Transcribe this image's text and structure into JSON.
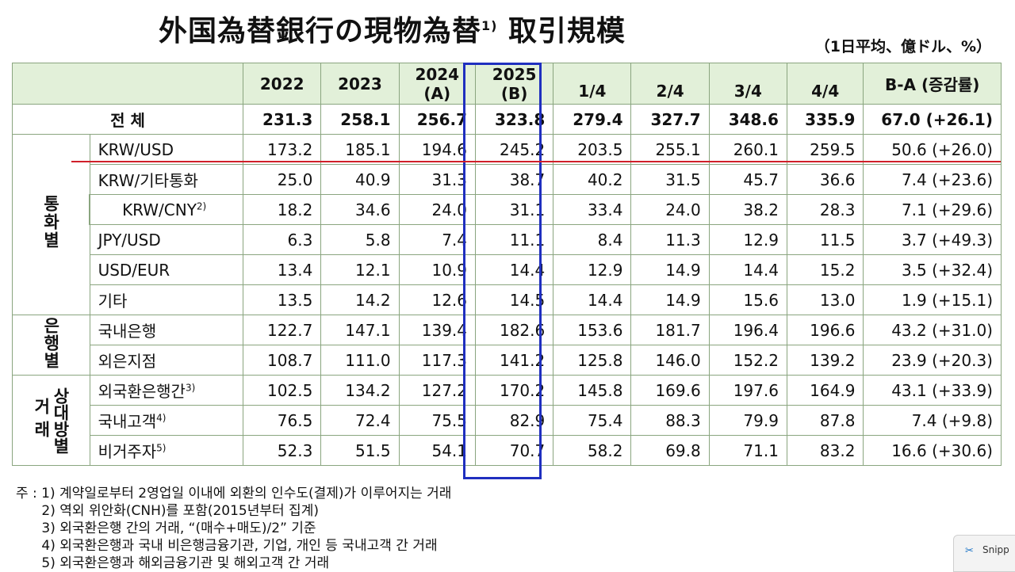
{
  "title": "外国為替銀行の現物為替",
  "title_sup": "1)",
  "title_tail": "取引規模",
  "unit": "（1日平均、億ドル、%）",
  "table": {
    "headers": {
      "y2022": "2022",
      "y2023": "2023",
      "y2024": "2024",
      "y2024_sub": "(A)",
      "y2025": "2025",
      "y2025_sub": "(B)",
      "q1": "1/4",
      "q2": "2/4",
      "q3": "3/4",
      "q4": "4/4",
      "diff": "B-A (증감률)"
    },
    "total": {
      "label": "전 체",
      "values": [
        "231.3",
        "258.1",
        "256.7",
        "323.8",
        "279.4",
        "327.7",
        "348.6",
        "335.9",
        "67.0 (+26.1)"
      ]
    },
    "groups": {
      "currency": "통화별",
      "bank": "은행별",
      "counterparty_outer": "거래",
      "counterparty_inner": "상대방별"
    },
    "rows": [
      {
        "label": "KRW/USD",
        "values": [
          "173.2",
          "185.1",
          "194.6",
          "245.2",
          "203.5",
          "255.1",
          "260.1",
          "259.5",
          "50.6 (+26.0)"
        ]
      },
      {
        "label": "KRW/기타통화",
        "values": [
          "25.0",
          "40.9",
          "31.3",
          "38.7",
          "40.2",
          "31.5",
          "45.7",
          "36.6",
          "7.4 (+23.6)"
        ]
      },
      {
        "label": "KRW/CNY",
        "label_sup": "2)",
        "values": [
          "18.2",
          "34.6",
          "24.0",
          "31.1",
          "33.4",
          "24.0",
          "38.2",
          "28.3",
          "7.1 (+29.6)"
        ]
      },
      {
        "label": "JPY/USD",
        "values": [
          "6.3",
          "5.8",
          "7.4",
          "11.1",
          "8.4",
          "11.3",
          "12.9",
          "11.5",
          "3.7 (+49.3)"
        ]
      },
      {
        "label": "USD/EUR",
        "values": [
          "13.4",
          "12.1",
          "10.9",
          "14.4",
          "12.9",
          "14.9",
          "14.4",
          "15.2",
          "3.5 (+32.4)"
        ]
      },
      {
        "label": "기타",
        "values": [
          "13.5",
          "14.2",
          "12.6",
          "14.5",
          "14.4",
          "14.9",
          "15.6",
          "13.0",
          "1.9 (+15.1)"
        ]
      },
      {
        "label": "국내은행",
        "values": [
          "122.7",
          "147.1",
          "139.4",
          "182.6",
          "153.6",
          "181.7",
          "196.4",
          "196.6",
          "43.2 (+31.0)"
        ]
      },
      {
        "label": "외은지점",
        "values": [
          "108.7",
          "111.0",
          "117.3",
          "141.2",
          "125.8",
          "146.0",
          "152.2",
          "139.2",
          "23.9 (+20.3)"
        ]
      },
      {
        "label": "외국환은행간",
        "label_sup": "3)",
        "values": [
          "102.5",
          "134.2",
          "127.2",
          "170.2",
          "145.8",
          "169.6",
          "197.6",
          "164.9",
          "43.1 (+33.9)"
        ]
      },
      {
        "label": "국내고객",
        "label_sup": "4)",
        "values": [
          "76.5",
          "72.4",
          "75.5",
          "82.9",
          "75.4",
          "88.3",
          "79.9",
          "87.8",
          "7.4 (+9.8)"
        ]
      },
      {
        "label": "비거주자",
        "label_sup": "5)",
        "values": [
          "52.3",
          "51.5",
          "54.1",
          "70.7",
          "58.2",
          "69.8",
          "71.1",
          "83.2",
          "16.6 (+30.6)"
        ]
      }
    ]
  },
  "notes": [
    "주 : 1) 계약일로부터 2영업일 이내에 외환의 인수도(결제)가 이루어지는 거래",
    "      2) 역외 위안화(CNH)를 포함(2015년부터 집계)",
    "      3) 외국환은행 간의 거래, “(매수+매도)/2” 기준",
    "      4) 외국환은행과 국내 비은행금융기관, 기업, 개인 등 국내고객 간 거래",
    "      5) 외국환은행과 해외금융기관 및 해외고객 간 거래"
  ],
  "snip": {
    "label": "Snipp",
    "icon": "scissors-icon"
  },
  "colors": {
    "header_bg": "#e2f0d9",
    "highlight_box": "#1f2fbf",
    "red_line": "#d0202a"
  }
}
